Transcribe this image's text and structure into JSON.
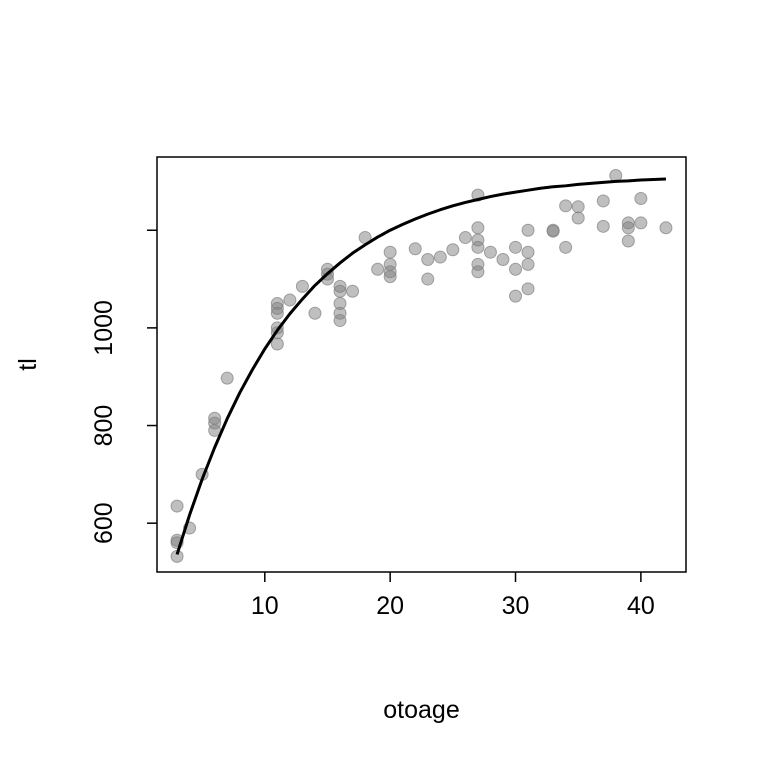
{
  "chart_data": {
    "type": "scatter",
    "title": "",
    "xlabel": "otoage",
    "ylabel": "tl",
    "xlim": [
      1.4,
      43.6
    ],
    "ylim": [
      500,
      1350
    ],
    "xticks": [
      10,
      20,
      30,
      40
    ],
    "yticks": [
      600,
      800,
      1000
    ],
    "ytick_marks_unlabeled": [
      1200
    ],
    "grid": false,
    "legend": "none",
    "point_color": "#808080",
    "point_opacity": 0.5,
    "line_color": "#000000",
    "series": [
      {
        "kind": "points",
        "x": [
          3,
          3,
          3,
          3,
          4,
          5,
          6,
          6,
          6,
          7,
          11,
          11,
          11,
          11,
          11,
          11,
          12,
          13,
          14,
          15,
          15,
          15,
          16,
          16,
          16,
          16,
          16,
          17,
          18,
          19,
          20,
          20,
          20,
          20,
          22,
          23,
          23,
          24,
          25,
          26,
          27,
          27,
          27,
          27,
          27,
          27,
          28,
          29,
          30,
          30,
          30,
          31,
          31,
          31,
          31,
          33,
          33,
          34,
          34,
          35,
          35,
          37,
          37,
          38,
          39,
          39,
          39,
          40,
          40,
          42
        ],
        "y": [
          635,
          565,
          560,
          532,
          590,
          700,
          815,
          805,
          790,
          897,
          1050,
          1040,
          1030,
          1000,
          990,
          967,
          1057,
          1085,
          1030,
          1120,
          1110,
          1100,
          1085,
          1075,
          1050,
          1030,
          1015,
          1075,
          1185,
          1120,
          1155,
          1130,
          1115,
          1105,
          1162,
          1140,
          1100,
          1145,
          1160,
          1185,
          1272,
          1205,
          1180,
          1165,
          1130,
          1115,
          1155,
          1140,
          1165,
          1120,
          1065,
          1200,
          1155,
          1130,
          1080,
          1198,
          1200,
          1250,
          1165,
          1248,
          1225,
          1260,
          1208,
          1312,
          1215,
          1205,
          1178,
          1265,
          1215,
          1205
        ]
      },
      {
        "kind": "fitted-curve",
        "x": [
          3,
          4,
          5,
          6,
          7,
          8,
          9,
          10,
          11,
          12,
          13,
          14,
          15,
          16,
          17,
          18,
          19,
          20,
          21,
          22,
          23,
          24,
          25,
          26,
          27,
          28,
          29,
          30,
          31,
          32,
          33,
          34,
          35,
          36,
          37,
          38,
          39,
          40,
          41,
          42
        ],
        "y": [
          536,
          617,
          690,
          755,
          814,
          867,
          914,
          957,
          995,
          1029,
          1059,
          1087,
          1111,
          1133,
          1153,
          1170,
          1186,
          1200,
          1212,
          1223,
          1233,
          1242,
          1250,
          1257,
          1263,
          1269,
          1274,
          1278,
          1282,
          1286,
          1289,
          1291,
          1294,
          1296,
          1298,
          1300,
          1301,
          1303,
          1304,
          1305
        ]
      }
    ]
  }
}
